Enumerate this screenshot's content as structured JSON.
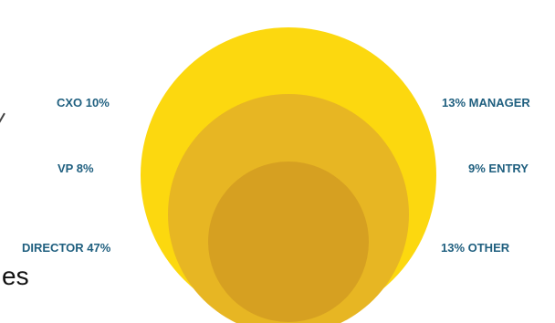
{
  "labels": {
    "cxo": "CXO 10%",
    "vp": "VP 8%",
    "director": "DIRECTOR 47%",
    "manager": "13% MANAGER",
    "entry": "9% ENTRY",
    "other": "13% OTHER"
  },
  "text_fragment": "es",
  "colors": {
    "outer_circle": "#fcd80f",
    "middle_circle": "#e7b623",
    "inner_circle": "#d6a021",
    "label_text": "#1f5f7f"
  }
}
